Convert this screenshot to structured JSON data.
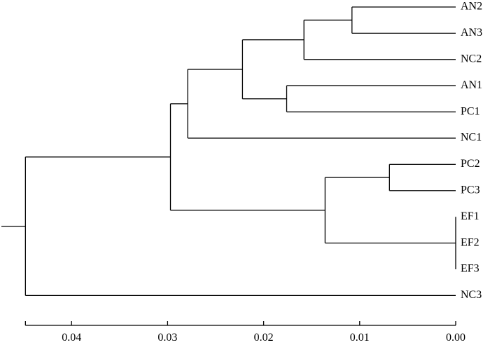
{
  "chart_data": {
    "type": "dendrogram",
    "orientation": "root-left",
    "leaves": [
      "AN2",
      "AN3",
      "NC2",
      "AN1",
      "PC1",
      "NC1",
      "PC2",
      "PC3",
      "EF1",
      "EF2",
      "EF3",
      "NC3"
    ],
    "merges": [
      {
        "id": "m1",
        "height": 0.0108,
        "children": [
          "AN2",
          "AN3"
        ]
      },
      {
        "id": "m2",
        "height": 0.0158,
        "children": [
          "m1",
          "NC2"
        ]
      },
      {
        "id": "m3",
        "height": 0.0176,
        "children": [
          "AN1",
          "PC1"
        ]
      },
      {
        "id": "m4",
        "height": 0.0222,
        "children": [
          "m2",
          "m3"
        ]
      },
      {
        "id": "m5",
        "height": 0.0279,
        "children": [
          "m4",
          "NC1"
        ]
      },
      {
        "id": "m6",
        "height": 0.0069,
        "children": [
          "PC2",
          "PC3"
        ]
      },
      {
        "id": "m7",
        "height": 0.0,
        "children": [
          "EF1",
          "EF2",
          "EF3"
        ]
      },
      {
        "id": "m8",
        "height": 0.0136,
        "children": [
          "m6",
          "m7"
        ]
      },
      {
        "id": "m9",
        "height": 0.0297,
        "children": [
          "m5",
          "m8"
        ]
      },
      {
        "id": "m10",
        "height": 0.0448,
        "children": [
          "m9",
          "NC3"
        ]
      }
    ],
    "axis": {
      "ticks": [
        0.04,
        0.03,
        0.02,
        0.01,
        0.0
      ],
      "tick_labels": [
        "0.04",
        "0.03",
        "0.02",
        "0.01",
        "0.00"
      ],
      "range": [
        0.0448,
        0.0
      ],
      "direction": "reversed"
    }
  }
}
